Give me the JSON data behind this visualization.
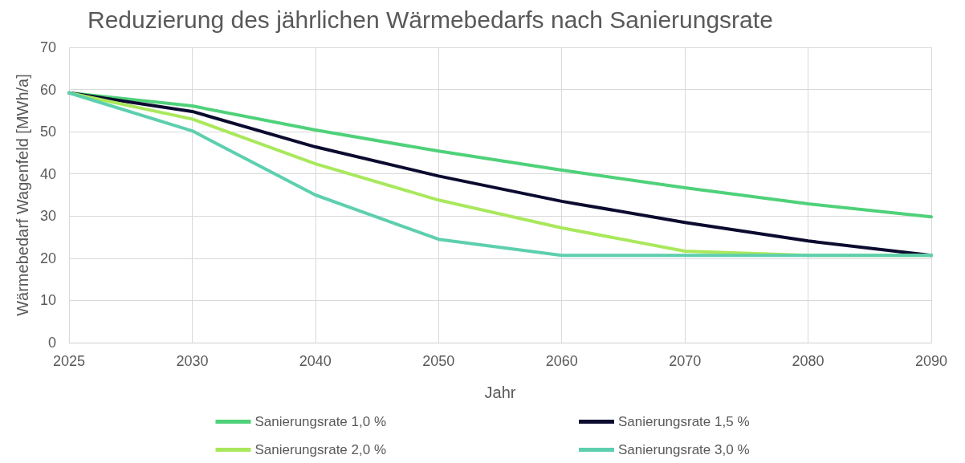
{
  "chart_data": {
    "type": "line",
    "title": "Reduzierung des jährlichen Wärmebedarfs nach Sanierungsrate",
    "xlabel": "Jahr",
    "ylabel": "Wärmebedarf Wagenfeld [MWh/a]",
    "categories": [
      "2025",
      "2030",
      "2040",
      "2050",
      "2060",
      "2070",
      "2080",
      "2090"
    ],
    "series": [
      {
        "name": "Sanierungsrate 1,0 %",
        "color": "#4fd17a",
        "values": [
          59.2,
          56.1,
          50.4,
          45.4,
          40.9,
          36.7,
          32.9,
          29.8
        ]
      },
      {
        "name": "Sanierungsrate 1,5 %",
        "color": "#0b0b30",
        "values": [
          59.2,
          54.8,
          46.4,
          39.5,
          33.5,
          28.5,
          24.1,
          20.7
        ]
      },
      {
        "name": "Sanierungsrate 2,0 %",
        "color": "#a9e85c",
        "values": [
          59.2,
          53.0,
          42.4,
          33.8,
          27.2,
          21.7,
          20.7,
          20.7
        ]
      },
      {
        "name": "Sanierungsrate 3,0 %",
        "color": "#5dcfae",
        "values": [
          59.2,
          50.2,
          35.0,
          24.5,
          20.7,
          20.7,
          20.7,
          20.7
        ]
      }
    ],
    "ylim": [
      0,
      70
    ],
    "yticks": [
      0,
      10,
      20,
      30,
      40,
      50,
      60,
      70
    ],
    "grid": true,
    "legend": "bottom",
    "marker": "none",
    "line_style": "solid"
  }
}
